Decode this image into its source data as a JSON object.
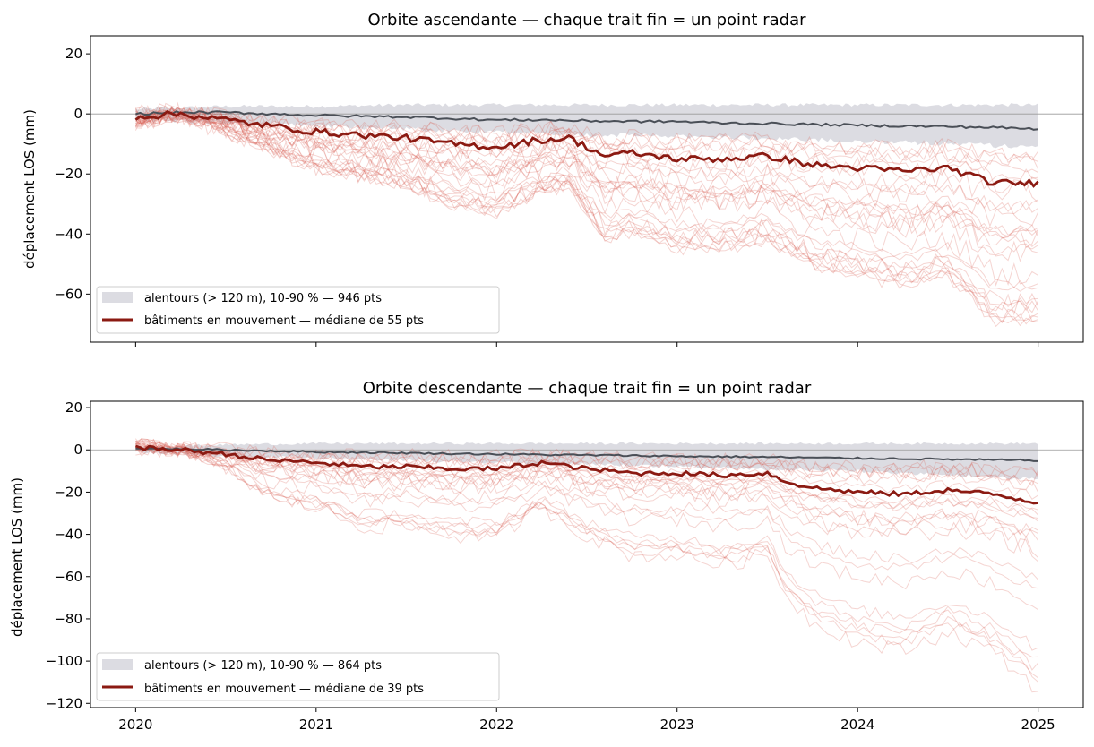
{
  "chart_data": [
    {
      "type": "line",
      "title": "Orbite ascendante — chaque trait fin = un point radar",
      "xlabel": "",
      "ylabel": "déplacement LOS (mm)",
      "xlim": [
        2019.75,
        2025.25
      ],
      "ylim": [
        -76,
        26
      ],
      "yticks": [
        20,
        0,
        -20,
        -40,
        -60
      ],
      "ytick_labels": [
        "20",
        "0",
        "−20",
        "−40",
        "−60"
      ],
      "xticks": [
        2020,
        2021,
        2022,
        2023,
        2024,
        2025
      ],
      "xtick_labels": [],
      "grid": false,
      "zero_line": true,
      "legend_position": "lower-left",
      "background_band": {
        "name": "alentours (> 120 m), 10-90 % — 946 pts",
        "color": "#dcdce2",
        "x": [
          2020.0,
          2020.5,
          2021.0,
          2021.5,
          2022.0,
          2022.5,
          2023.0,
          2023.5,
          2024.0,
          2024.5,
          2025.0
        ],
        "upper": [
          1.5,
          2.5,
          2.5,
          3,
          3,
          3,
          3,
          3,
          3,
          3,
          3
        ],
        "lower": [
          -2,
          -3,
          -4,
          -5,
          -6,
          -7,
          -7.5,
          -8,
          -9,
          -10,
          -11
        ]
      },
      "background_median": {
        "color": "#4a4f57",
        "x": [
          2020.0,
          2020.25,
          2020.5,
          2020.75,
          2021.0,
          2021.25,
          2021.5,
          2021.75,
          2022.0,
          2022.25,
          2022.5,
          2022.75,
          2023.0,
          2023.25,
          2023.5,
          2023.75,
          2024.0,
          2024.25,
          2024.5,
          2024.75,
          2025.0
        ],
        "values": [
          0,
          0.5,
          0.5,
          0,
          -0.5,
          -0.8,
          -1,
          -1.5,
          -2,
          -2,
          -2.3,
          -2.5,
          -2.5,
          -3,
          -3.2,
          -3.5,
          -3.8,
          -4,
          -4.2,
          -4.5,
          -5
        ]
      },
      "moving_median": {
        "name": "bâtiments en mouvement — médiane de 55 pts",
        "color": "#8b1a12",
        "x": [
          2020.0,
          2020.25,
          2020.5,
          2020.75,
          2021.0,
          2021.25,
          2021.5,
          2021.75,
          2022.0,
          2022.2,
          2022.4,
          2022.6,
          2022.75,
          2023.0,
          2023.25,
          2023.5,
          2023.75,
          2024.0,
          2024.25,
          2024.5,
          2024.75,
          2025.0
        ],
        "values": [
          -1,
          0,
          -2,
          -4,
          -6,
          -7,
          -8,
          -10,
          -11,
          -9,
          -8,
          -14,
          -13,
          -15,
          -15,
          -14,
          -17,
          -18,
          -19,
          -18,
          -23,
          -23
        ]
      },
      "point_count_traces": 28,
      "point_color": "#d9564a"
    },
    {
      "type": "line",
      "title": "Orbite descendante — chaque trait fin = un point radar",
      "xlabel": "",
      "ylabel": "déplacement LOS (mm)",
      "xlim": [
        2019.75,
        2025.25
      ],
      "ylim": [
        -122,
        23
      ],
      "yticks": [
        20,
        0,
        -20,
        -40,
        -60,
        -80,
        -100,
        -120
      ],
      "ytick_labels": [
        "20",
        "0",
        "−20",
        "−40",
        "−60",
        "−80",
        "−100",
        "−120"
      ],
      "xticks": [
        2020,
        2021,
        2022,
        2023,
        2024,
        2025
      ],
      "xtick_labels": [
        "2020",
        "2021",
        "2022",
        "2023",
        "2024",
        "2025"
      ],
      "grid": false,
      "zero_line": true,
      "legend_position": "lower-left",
      "background_band": {
        "name": "alentours (> 120 m), 10-90 % — 864 pts",
        "color": "#dcdce2",
        "x": [
          2020.0,
          2020.5,
          2021.0,
          2021.5,
          2022.0,
          2022.5,
          2023.0,
          2023.5,
          2024.0,
          2024.5,
          2025.0
        ],
        "upper": [
          1.5,
          2.5,
          3,
          3,
          3,
          3,
          3,
          3,
          3,
          3,
          3
        ],
        "lower": [
          -1,
          -3,
          -4,
          -5,
          -6,
          -7,
          -8,
          -9,
          -10,
          -12,
          -14
        ]
      },
      "background_median": {
        "color": "#4a4f57",
        "x": [
          2020.0,
          2020.25,
          2020.5,
          2020.75,
          2021.0,
          2021.25,
          2021.5,
          2021.75,
          2022.0,
          2022.25,
          2022.5,
          2022.75,
          2023.0,
          2023.25,
          2023.5,
          2023.75,
          2024.0,
          2024.25,
          2024.5,
          2024.75,
          2025.0
        ],
        "values": [
          0.5,
          0.5,
          0,
          -0.5,
          -1,
          -1.2,
          -1.5,
          -1.8,
          -2,
          -2.3,
          -2.5,
          -2.7,
          -3,
          -3.2,
          -3.4,
          -3.7,
          -4,
          -4.2,
          -4.5,
          -4.8,
          -5
        ]
      },
      "moving_median": {
        "name": "bâtiments en mouvement — médiane de 39 pts",
        "color": "#8b1a12",
        "x": [
          2020.0,
          2020.25,
          2020.5,
          2020.75,
          2021.0,
          2021.25,
          2021.5,
          2021.75,
          2022.0,
          2022.25,
          2022.5,
          2022.75,
          2023.0,
          2023.25,
          2023.5,
          2023.6,
          2023.75,
          2024.0,
          2024.25,
          2024.5,
          2024.75,
          2025.0
        ],
        "values": [
          1,
          0,
          -2,
          -5,
          -6,
          -8,
          -8,
          -9,
          -9,
          -6,
          -9,
          -11,
          -11,
          -12,
          -11,
          -15,
          -18,
          -20,
          -21,
          -19,
          -21,
          -25
        ]
      },
      "point_count_traces": 24,
      "point_color": "#d9564a"
    }
  ]
}
